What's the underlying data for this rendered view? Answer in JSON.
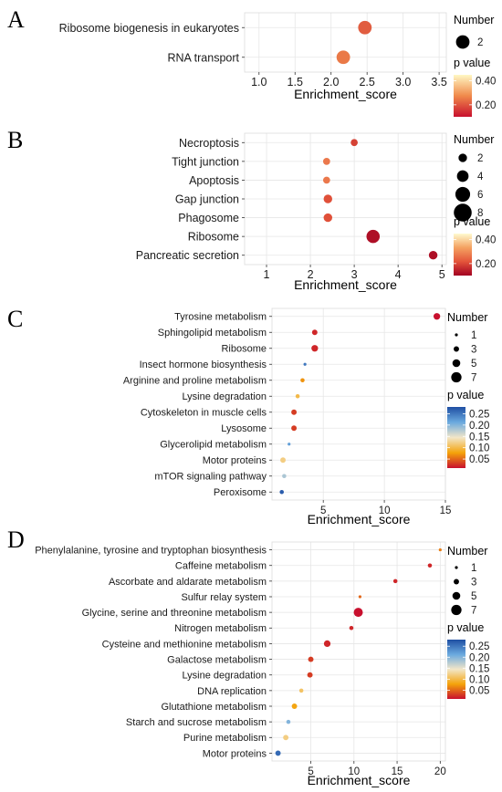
{
  "legend_labels": {
    "number": "Number",
    "pvalue": "p value"
  },
  "chart_data": [
    {
      "panel": "A",
      "type": "scatter",
      "xlabel": "Enrichment_score",
      "xlim": [
        0.8,
        3.6
      ],
      "xticks": [
        1.0,
        1.5,
        2.0,
        2.5,
        3.0,
        3.5
      ],
      "xtick_labels": [
        "1.0",
        "1.5",
        "2.0",
        "2.5",
        "3.0",
        "3.5"
      ],
      "grid": true,
      "categories": [
        "RNA transport",
        "Ribosome biogenesis in eukaryotes"
      ],
      "points": [
        {
          "category": "RNA transport",
          "x": 2.17,
          "number": 2,
          "p": 0.25
        },
        {
          "category": "Ribosome biogenesis in eukaryotes",
          "x": 2.47,
          "number": 2,
          "p": 0.21
        }
      ],
      "size_legend": [
        2
      ],
      "color_legend": {
        "ticks": [
          0.4,
          0.2
        ],
        "tick_labels": [
          "0.40",
          "0.20"
        ],
        "range": [
          0.1,
          0.45
        ],
        "colors": [
          "#c8102e",
          "#f08a4b",
          "#fff8c4"
        ]
      }
    },
    {
      "panel": "B",
      "type": "scatter",
      "xlabel": "Enrichment_score",
      "xlim": [
        0.5,
        5.1
      ],
      "xticks": [
        1,
        2,
        3,
        4,
        5
      ],
      "xtick_labels": [
        "1",
        "2",
        "3",
        "4",
        "5"
      ],
      "grid": true,
      "categories": [
        "Pancreatic secretion",
        "Ribosome",
        "Phagosome",
        "Gap junction",
        "Apoptosis",
        "Tight junction",
        "Necroptosis"
      ],
      "points": [
        {
          "category": "Pancreatic secretion",
          "x": 4.8,
          "number": 3,
          "p": 0.12
        },
        {
          "category": "Ribosome",
          "x": 3.43,
          "number": 6,
          "p": 0.12
        },
        {
          "category": "Phagosome",
          "x": 2.4,
          "number": 3,
          "p": 0.21
        },
        {
          "category": "Gap junction",
          "x": 2.4,
          "number": 3,
          "p": 0.21
        },
        {
          "category": "Apoptosis",
          "x": 2.37,
          "number": 2,
          "p": 0.27
        },
        {
          "category": "Tight junction",
          "x": 2.37,
          "number": 2,
          "p": 0.27
        },
        {
          "category": "Necroptosis",
          "x": 3.0,
          "number": 2,
          "p": 0.19
        }
      ],
      "size_legend": [
        2,
        4,
        6,
        8
      ],
      "color_legend": {
        "ticks": [
          0.4,
          0.2
        ],
        "tick_labels": [
          "0.40",
          "0.20"
        ],
        "range": [
          0.1,
          0.45
        ],
        "colors": [
          "#a30022",
          "#e4553a",
          "#f4a261",
          "#fffbd0"
        ]
      }
    },
    {
      "panel": "C",
      "type": "scatter",
      "xlabel": "Enrichment_score",
      "xlim": [
        0.8,
        15.0
      ],
      "xticks": [
        5,
        10,
        15
      ],
      "xtick_labels": [
        "5",
        "10",
        "15"
      ],
      "grid": true,
      "categories": [
        "Peroxisome",
        "mTOR signaling pathway",
        "Motor proteins",
        "Glycerolipid metabolism",
        "Lysosome",
        "Cytoskeleton in muscle cells",
        "Lysine degradation",
        "Arginine and proline metabolism",
        "Insect hormone biosynthesis",
        "Ribosome",
        "Sphingolipid metabolism",
        "Tyrosine metabolism"
      ],
      "points": [
        {
          "category": "Peroxisome",
          "x": 1.6,
          "number": 2,
          "p": 0.27
        },
        {
          "category": "mTOR signaling pathway",
          "x": 1.8,
          "number": 2,
          "p": 0.18
        },
        {
          "category": "Motor proteins",
          "x": 1.7,
          "number": 3,
          "p": 0.12
        },
        {
          "category": "Glycerolipid metabolism",
          "x": 2.2,
          "number": 1,
          "p": 0.22
        },
        {
          "category": "Lysosome",
          "x": 2.6,
          "number": 3,
          "p": 0.03
        },
        {
          "category": "Cytoskeleton in muscle cells",
          "x": 2.6,
          "number": 3,
          "p": 0.03
        },
        {
          "category": "Lysine degradation",
          "x": 2.9,
          "number": 2,
          "p": 0.1
        },
        {
          "category": "Arginine and proline metabolism",
          "x": 3.3,
          "number": 2,
          "p": 0.07
        },
        {
          "category": "Insect hormone biosynthesis",
          "x": 3.5,
          "number": 1,
          "p": 0.25
        },
        {
          "category": "Ribosome",
          "x": 4.3,
          "number": 4,
          "p": 0.02
        },
        {
          "category": "Sphingolipid metabolism",
          "x": 4.3,
          "number": 3,
          "p": 0.02
        },
        {
          "category": "Tyrosine metabolism",
          "x": 14.3,
          "number": 4,
          "p": 0.01
        }
      ],
      "size_legend": [
        1,
        3,
        5,
        7
      ],
      "color_legend": {
        "ticks": [
          0.25,
          0.2,
          0.15,
          0.1,
          0.05
        ],
        "tick_labels": [
          "0.25",
          "0.20",
          "0.15",
          "0.10",
          "0.05"
        ],
        "range": [
          0.01,
          0.28
        ],
        "colors": [
          "#c8102e",
          "#f4a30a",
          "#f2e6c8",
          "#6aa9df",
          "#1f4fa3"
        ]
      }
    },
    {
      "panel": "D",
      "type": "scatter",
      "xlabel": "Enrichment_score",
      "xlim": [
        0.5,
        20.6
      ],
      "xticks": [
        5,
        10,
        15,
        20
      ],
      "xtick_labels": [
        "5",
        "10",
        "15",
        "20"
      ],
      "grid": true,
      "categories": [
        "Motor proteins",
        "Purine metabolism",
        "Starch and sucrose metabolism",
        "Glutathione metabolism",
        "DNA replication",
        "Lysine degradation",
        "Galactose metabolism",
        "Cysteine and methionine metabolism",
        "Nitrogen metabolism",
        "Glycine, serine and threonine metabolism",
        "Sulfur relay system",
        "Ascorbate and aldarate metabolism",
        "Caffeine metabolism",
        "Phenylalanine, tyrosine and tryptophan biosynthesis"
      ],
      "points": [
        {
          "category": "Motor proteins",
          "x": 1.2,
          "number": 3,
          "p": 0.26
        },
        {
          "category": "Purine metabolism",
          "x": 2.1,
          "number": 3,
          "p": 0.12
        },
        {
          "category": "Starch and sucrose metabolism",
          "x": 2.4,
          "number": 2,
          "p": 0.2
        },
        {
          "category": "Glutathione metabolism",
          "x": 3.1,
          "number": 3,
          "p": 0.08
        },
        {
          "category": "DNA replication",
          "x": 3.9,
          "number": 2,
          "p": 0.11
        },
        {
          "category": "Lysine degradation",
          "x": 4.9,
          "number": 3,
          "p": 0.03
        },
        {
          "category": "Galactose metabolism",
          "x": 5.0,
          "number": 3,
          "p": 0.03
        },
        {
          "category": "Cysteine and methionine metabolism",
          "x": 6.9,
          "number": 4,
          "p": 0.02
        },
        {
          "category": "Nitrogen metabolism",
          "x": 9.7,
          "number": 2,
          "p": 0.02
        },
        {
          "category": "Glycine, serine and threonine metabolism",
          "x": 10.5,
          "number": 6,
          "p": 0.01
        },
        {
          "category": "Sulfur relay system",
          "x": 10.7,
          "number": 1,
          "p": 0.05
        },
        {
          "category": "Ascorbate and aldarate metabolism",
          "x": 14.8,
          "number": 2,
          "p": 0.02
        },
        {
          "category": "Caffeine metabolism",
          "x": 18.8,
          "number": 2,
          "p": 0.02
        },
        {
          "category": "Phenylalanine, tyrosine and tryptophan biosynthesis",
          "x": 20.0,
          "number": 1,
          "p": 0.06
        }
      ],
      "size_legend": [
        1,
        3,
        5,
        7
      ],
      "color_legend": {
        "ticks": [
          0.25,
          0.2,
          0.15,
          0.1,
          0.05
        ],
        "tick_labels": [
          "0.25",
          "0.20",
          "0.15",
          "0.10",
          "0.05"
        ],
        "range": [
          0.01,
          0.28
        ],
        "colors": [
          "#c8102e",
          "#f4a30a",
          "#f2e6c8",
          "#6aa9df",
          "#1f4fa3"
        ]
      }
    }
  ]
}
